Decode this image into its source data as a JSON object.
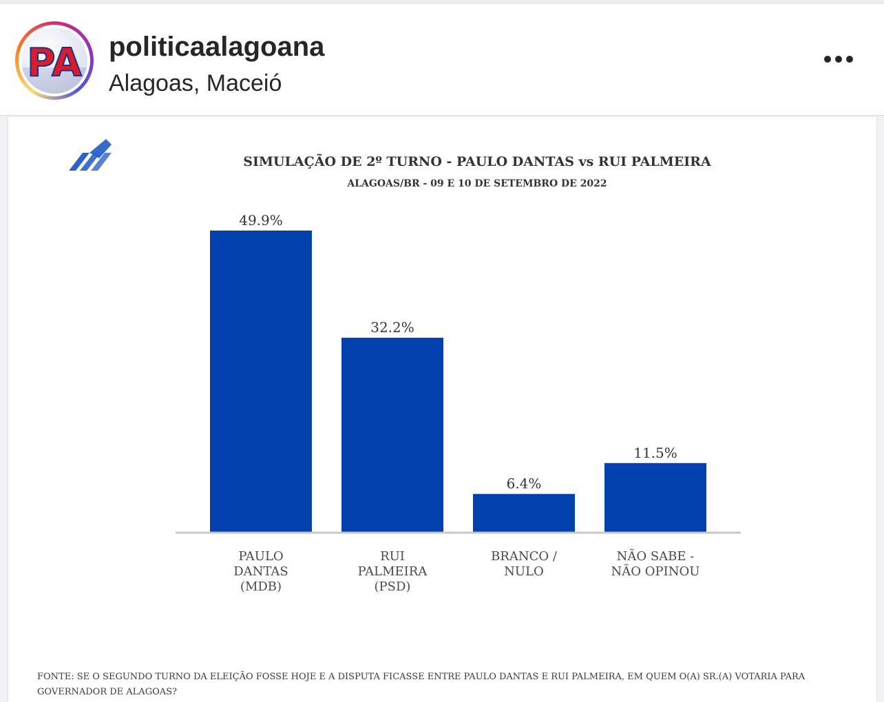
{
  "post_header": {
    "username": "politicaalagoana",
    "location": "Alagoas, Maceió",
    "avatar_monogram": "PA",
    "more_icon": "more-horizontal-icon"
  },
  "chart_data": {
    "type": "bar",
    "title": "SIMULAÇÃO DE 2º TURNO - PAULO DANTAS vs RUI PALMEIRA",
    "subtitle": "ALAGOAS/BR - 09 E 10 DE SETEMBRO DE 2022",
    "categories": [
      [
        "PAULO",
        "DANTAS",
        "(MDB)"
      ],
      [
        "RUI",
        "PALMEIRA",
        "(PSD)"
      ],
      [
        "BRANCO /",
        "NULO"
      ],
      [
        "NÃO SABE  -",
        "NÃO OPINOU"
      ]
    ],
    "values": [
      49.9,
      32.2,
      6.4,
      11.5
    ],
    "value_labels": [
      "49.9%",
      "32.2%",
      "6.4%",
      "11.5%"
    ],
    "bar_color": "#0342ae",
    "ylim": [
      0,
      49.9
    ],
    "grid": false,
    "source": "FONTE: SE O SEGUNDO TURNO DA ELEIÇÃO FOSSE HOJE E A DISPUTA FICASSE ENTRE PAULO DANTAS E RUI PALMEIRA, EM QUEM O(A) SR.(A) VOTARIA PARA GOVERNADOR DE ALAGOAS?"
  }
}
